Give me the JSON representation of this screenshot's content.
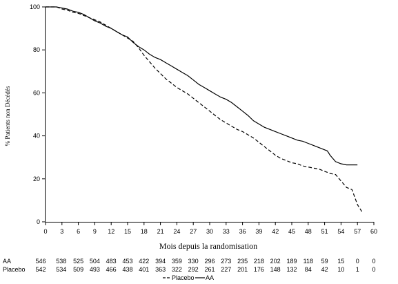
{
  "chart_data": {
    "type": "line",
    "xlabel": "Mois depuis la randomisation",
    "ylabel": "% Patients non Décédés",
    "xlim": [
      0,
      60
    ],
    "ylim": [
      0,
      100
    ],
    "x_ticks": [
      0,
      3,
      6,
      9,
      12,
      15,
      18,
      21,
      24,
      27,
      30,
      33,
      36,
      39,
      42,
      45,
      48,
      51,
      54,
      57,
      60
    ],
    "y_ticks": [
      0,
      20,
      40,
      60,
      80,
      100
    ],
    "grid": false,
    "legend_position": "bottom-center",
    "series": [
      {
        "name": "AA",
        "style": "solid",
        "x": [
          0,
          1,
          2,
          3,
          4,
          5,
          6,
          7,
          8,
          9,
          10,
          11,
          12,
          13,
          14,
          15,
          16,
          17,
          18,
          19,
          20,
          21,
          22,
          23,
          24,
          25,
          26,
          27,
          28,
          29,
          30,
          31,
          32,
          33,
          34,
          35,
          36,
          37,
          38,
          39,
          40,
          41,
          42,
          43,
          44,
          45,
          46,
          47,
          48,
          49,
          50,
          51,
          51.5,
          52,
          53,
          54,
          55,
          56,
          57
        ],
        "y": [
          100,
          100,
          100,
          99.5,
          99,
          98,
          97.5,
          96.5,
          95,
          93.5,
          92.5,
          91,
          90,
          88.5,
          87,
          86,
          83.5,
          81.5,
          80,
          78,
          76.5,
          75.5,
          74,
          72.5,
          71,
          69.5,
          68,
          66,
          64,
          62.5,
          61,
          59.5,
          58,
          57,
          55.5,
          53.5,
          51.5,
          49.5,
          47,
          45.5,
          44,
          43,
          42,
          41,
          40,
          39,
          38,
          37.5,
          36.5,
          35.5,
          34.5,
          33.5,
          33,
          31,
          28,
          27,
          26.5,
          26.5,
          26.5
        ]
      },
      {
        "name": "Placebo",
        "style": "dashed",
        "x": [
          0,
          1,
          2,
          3,
          4,
          5,
          6,
          7,
          8,
          9,
          10,
          11,
          12,
          13,
          14,
          15,
          16,
          17,
          18,
          19,
          20,
          21,
          22,
          23,
          24,
          25,
          26,
          27,
          28,
          29,
          30,
          31,
          32,
          33,
          34,
          35,
          36,
          37,
          38,
          39,
          40,
          41,
          42,
          43,
          44,
          45,
          46,
          47,
          48,
          49,
          50,
          51,
          52,
          53,
          54,
          55,
          56,
          57,
          58
        ],
        "y": [
          100,
          100,
          100,
          99,
          98.5,
          97.5,
          97,
          96,
          95,
          94,
          93,
          91.5,
          90,
          88.5,
          87,
          85.5,
          84,
          81,
          77.5,
          74.5,
          71.5,
          69,
          66.5,
          64.5,
          62.5,
          61,
          59.5,
          57.5,
          55.5,
          53.5,
          51.5,
          49.5,
          47.5,
          46,
          44.5,
          43,
          42,
          40.5,
          39,
          37,
          35,
          33,
          31,
          29.5,
          28.5,
          27.5,
          27,
          26,
          25.5,
          25,
          24.5,
          23.5,
          22.5,
          22,
          19,
          16,
          15,
          8,
          4
        ]
      }
    ],
    "risk_table": {
      "rows": [
        {
          "label": "AA",
          "values": [
            "546",
            "538",
            "525",
            "504",
            "483",
            "453",
            "422",
            "394",
            "359",
            "330",
            "296",
            "273",
            "235",
            "218",
            "202",
            "189",
            "118",
            "59",
            "15",
            "0",
            "0"
          ]
        },
        {
          "label": "Placebo",
          "values": [
            "542",
            "534",
            "509",
            "493",
            "466",
            "438",
            "401",
            "363",
            "322",
            "292",
            "261",
            "227",
            "201",
            "176",
            "148",
            "132",
            "84",
            "42",
            "10",
            "1",
            "0"
          ]
        }
      ]
    },
    "legend": [
      {
        "label": "Placebo",
        "style": "dashed"
      },
      {
        "label": "AA",
        "style": "solid"
      }
    ]
  }
}
